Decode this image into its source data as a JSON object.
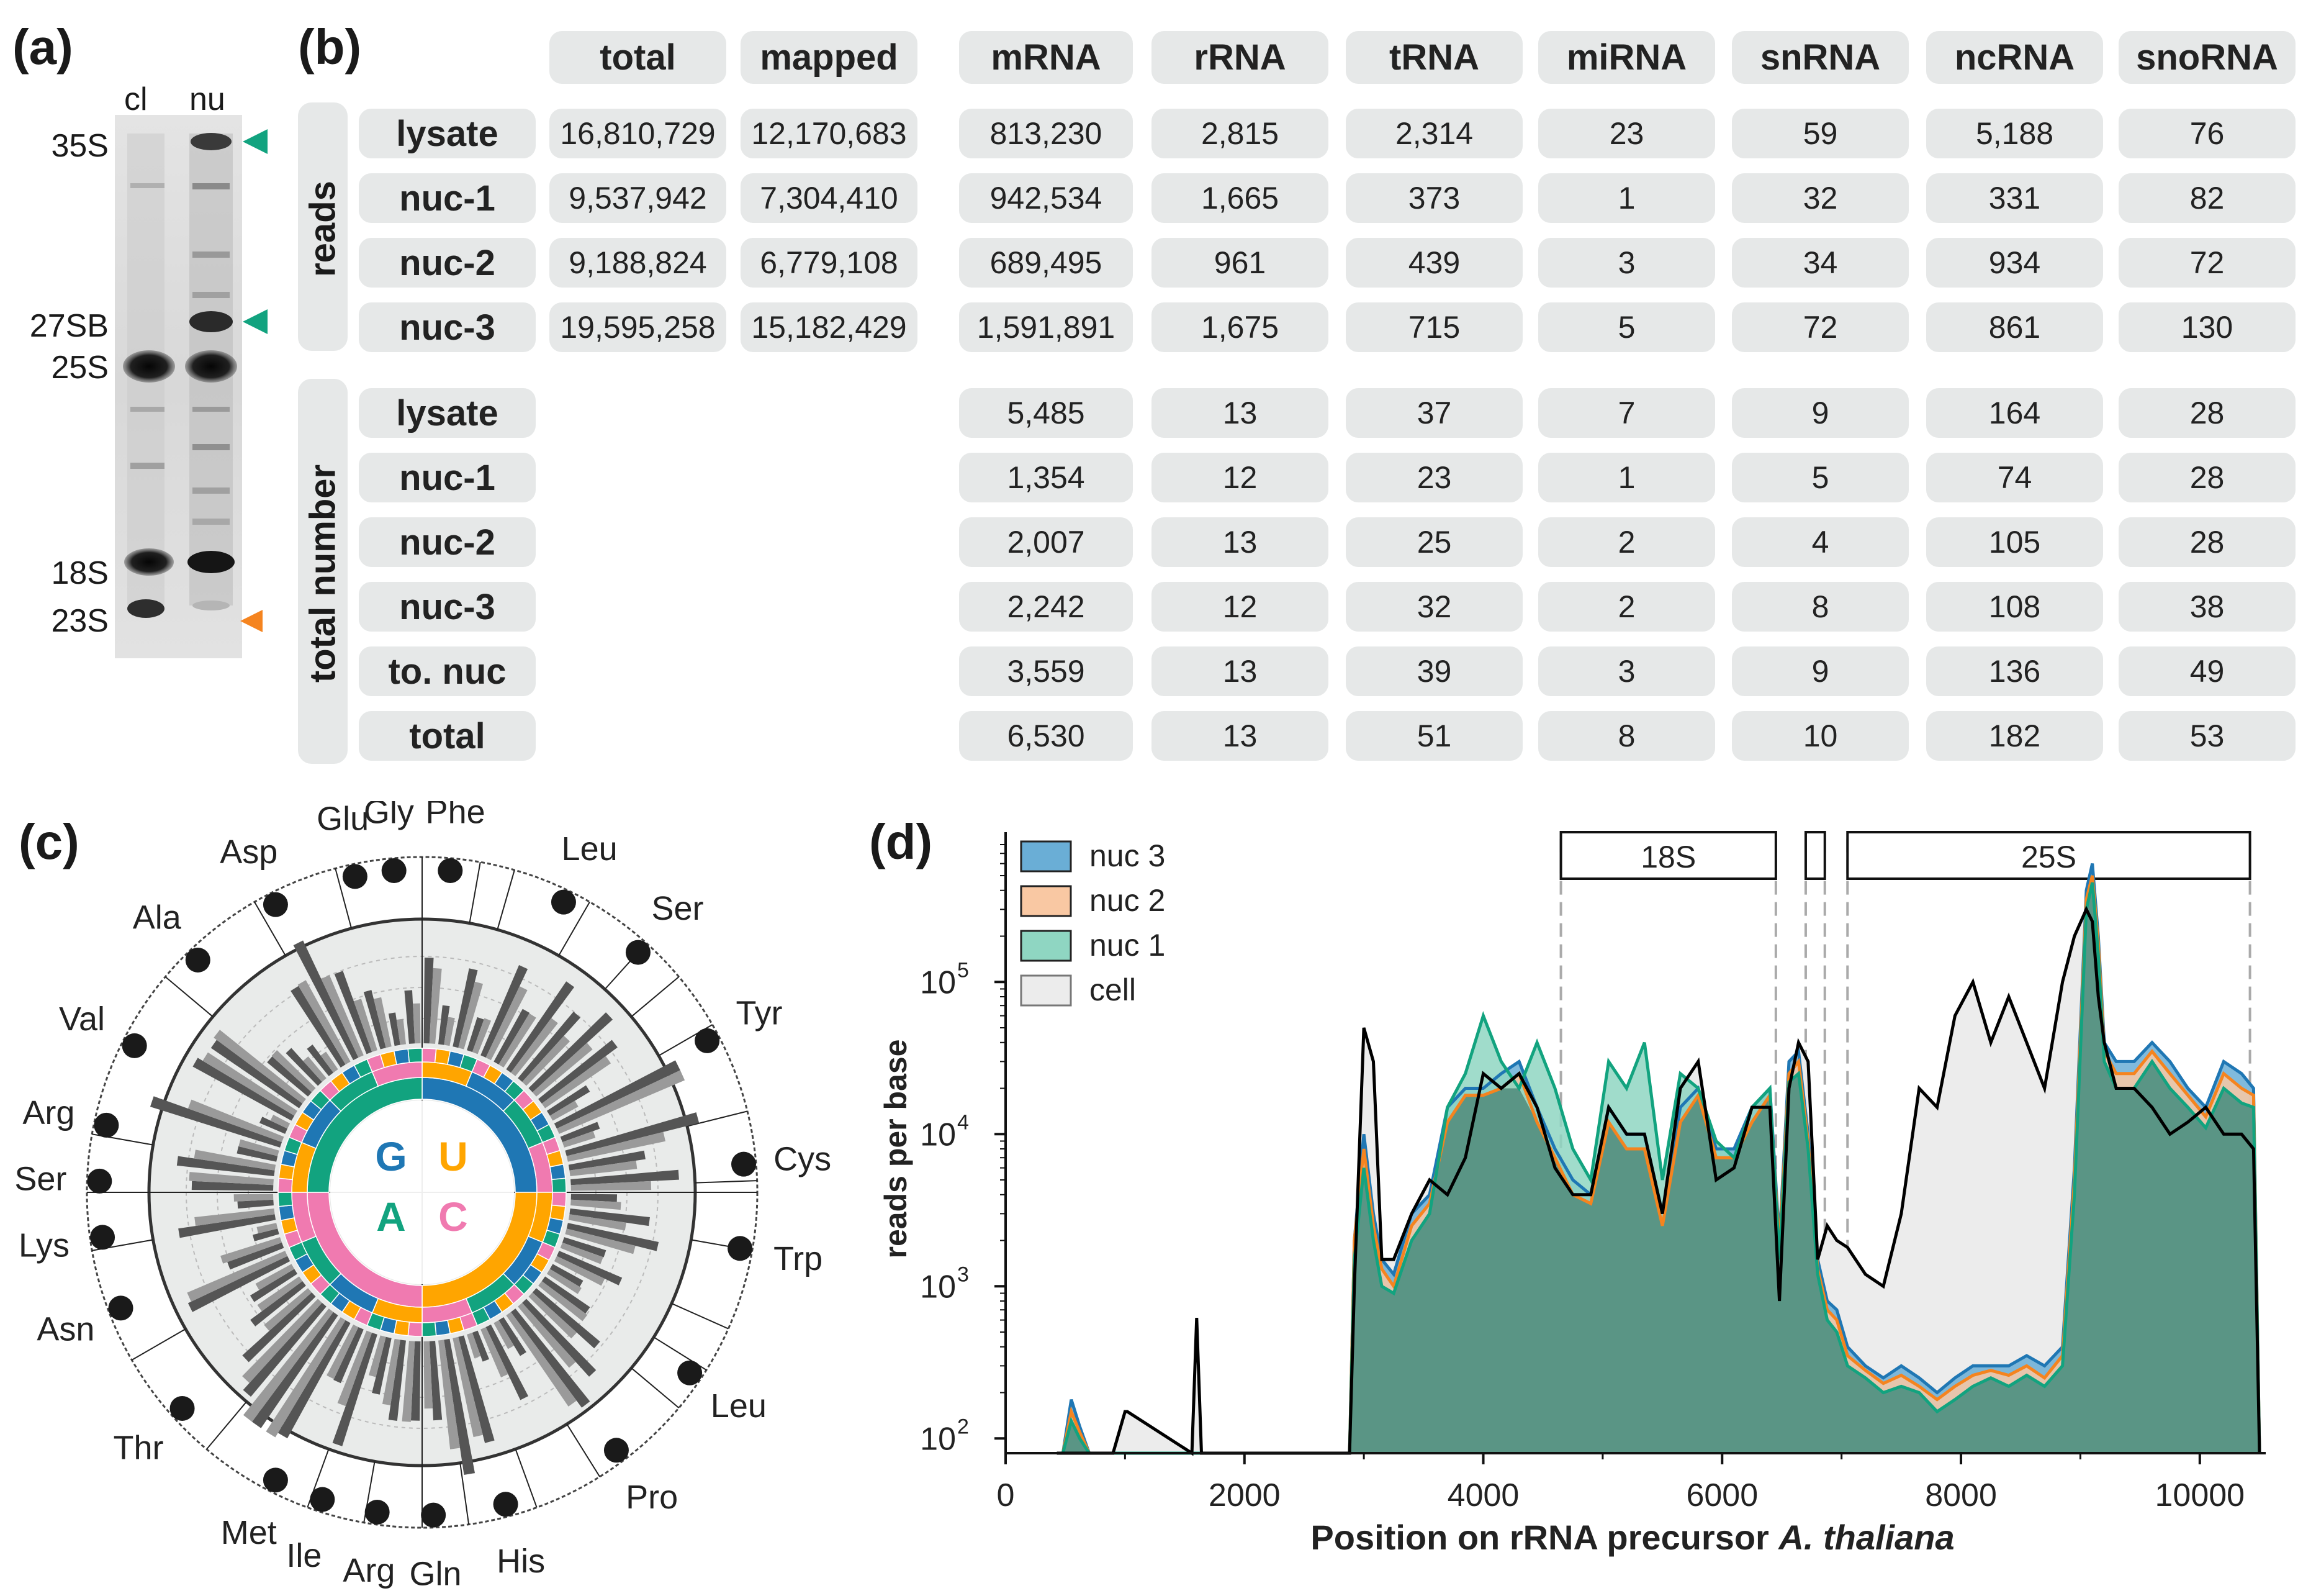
{
  "panels": {
    "a": "(a)",
    "b": "(b)",
    "c": "(c)",
    "d": "(d)"
  },
  "gel": {
    "lanes": [
      "cl",
      "nu"
    ],
    "markers": [
      "35S",
      "27SB",
      "25S",
      "18S",
      "23S"
    ],
    "arrow_colors": {
      "green": "#12a37f",
      "orange": "#f5841f"
    }
  },
  "table": {
    "columns": [
      "total",
      "mapped",
      "mRNA",
      "rRNA",
      "tRNA",
      "miRNA",
      "snRNA",
      "ncRNA",
      "snoRNA"
    ],
    "group_reads": "reads",
    "group_total": "total number",
    "reads_rows": [
      {
        "label": "lysate",
        "values": [
          "16,810,729",
          "12,170,683",
          "813,230",
          "2,815",
          "2,314",
          "23",
          "59",
          "5,188",
          "76"
        ]
      },
      {
        "label": "nuc-1",
        "values": [
          "9,537,942",
          "7,304,410",
          "942,534",
          "1,665",
          "373",
          "1",
          "32",
          "331",
          "82"
        ]
      },
      {
        "label": "nuc-2",
        "values": [
          "9,188,824",
          "6,779,108",
          "689,495",
          "961",
          "439",
          "3",
          "34",
          "934",
          "72"
        ]
      },
      {
        "label": "nuc-3",
        "values": [
          "19,595,258",
          "15,182,429",
          "1,591,891",
          "1,675",
          "715",
          "5",
          "72",
          "861",
          "130"
        ]
      }
    ],
    "total_rows": [
      {
        "label": "lysate",
        "values": [
          "5,485",
          "13",
          "37",
          "7",
          "9",
          "164",
          "28"
        ]
      },
      {
        "label": "nuc-1",
        "values": [
          "1,354",
          "12",
          "23",
          "1",
          "5",
          "74",
          "28"
        ]
      },
      {
        "label": "nuc-2",
        "values": [
          "2,007",
          "13",
          "25",
          "2",
          "4",
          "105",
          "28"
        ]
      },
      {
        "label": "nuc-3",
        "values": [
          "2,242",
          "12",
          "32",
          "2",
          "8",
          "108",
          "38"
        ]
      },
      {
        "label": "to. nuc",
        "values": [
          "3,559",
          "13",
          "39",
          "3",
          "9",
          "136",
          "49"
        ]
      },
      {
        "label": "total",
        "values": [
          "6,530",
          "13",
          "51",
          "8",
          "10",
          "182",
          "53"
        ]
      }
    ]
  },
  "codon_wheel": {
    "center_letters": [
      "G",
      "U",
      "A",
      "C"
    ],
    "letter_colors": {
      "G": "#1f77b4",
      "U": "#ffa500",
      "A": "#12a37f",
      "C": "#f07ab0"
    },
    "amino_acids": [
      "Phe",
      "Leu",
      "Ser",
      "Tyr",
      "Cys",
      "Trp",
      "Leu",
      "Pro",
      "His",
      "Gln",
      "Arg",
      "Ile",
      "Met",
      "Thr",
      "Asn",
      "Lys",
      "Ser",
      "Arg",
      "Val",
      "Ala",
      "Asp",
      "Glu",
      "Gly"
    ]
  },
  "chart_data": {
    "type": "area",
    "title": "",
    "xlabel": "Position on rRNA precursor",
    "xlabel_italic": "A. thaliana",
    "ylabel": "reads per base",
    "xlim": [
      0,
      10500
    ],
    "ylim": [
      80,
      800000
    ],
    "yscale": "log",
    "x_ticks": [
      "0",
      "2000",
      "4000",
      "6000",
      "8000",
      "10000"
    ],
    "y_ticks": [
      "10",
      "10",
      "10",
      "10"
    ],
    "y_tick_exponents": [
      "2",
      "3",
      "4",
      "5"
    ],
    "regions": [
      {
        "label": "18S",
        "start": 4650,
        "end": 6450
      },
      {
        "label": "",
        "start": 6700,
        "end": 6860
      },
      {
        "label": "25S",
        "start": 7050,
        "end": 10420
      }
    ],
    "series": [
      {
        "name": "nuc 3",
        "color": "#1f77b4",
        "fill": "#6aaed6"
      },
      {
        "name": "nuc 2",
        "color": "#f5841f",
        "fill": "#f9c8a3"
      },
      {
        "name": "nuc 1",
        "color": "#12a37f",
        "fill": "#8fd6c2"
      },
      {
        "name": "cell",
        "color": "#000000",
        "fill": "#ececec"
      }
    ],
    "profile_x": [
      430,
      480,
      550,
      620,
      700,
      760,
      900,
      1000,
      1020,
      1560,
      1600,
      1640,
      2880,
      2920,
      3000,
      3080,
      3150,
      3250,
      3400,
      3550,
      3700,
      3850,
      4000,
      4150,
      4300,
      4450,
      4600,
      4750,
      4900,
      5050,
      5200,
      5350,
      5500,
      5650,
      5800,
      5950,
      6100,
      6250,
      6400,
      6480,
      6560,
      6640,
      6720,
      6800,
      6880,
      6960,
      7050,
      7200,
      7350,
      7500,
      7650,
      7800,
      7950,
      8100,
      8250,
      8400,
      8550,
      8700,
      8850,
      8950,
      9050,
      9100,
      9150,
      9200,
      9300,
      9450,
      9600,
      9750,
      9900,
      10050,
      10200,
      10350,
      10450,
      10500
    ],
    "cell_values": [
      80,
      80,
      80,
      80,
      80,
      80,
      80,
      150,
      150,
      80,
      620,
      80,
      80,
      1000,
      50000,
      30000,
      1500,
      1500,
      3000,
      5000,
      4000,
      7000,
      25000,
      20000,
      25000,
      15000,
      6000,
      4000,
      4000,
      15000,
      10000,
      10000,
      3000,
      20000,
      30000,
      5000,
      6000,
      15000,
      15000,
      800,
      20000,
      40000,
      30000,
      1500,
      2500,
      2000,
      1800,
      1200,
      1000,
      3000,
      20000,
      15000,
      60000,
      100000,
      40000,
      80000,
      40000,
      20000,
      100000,
      200000,
      300000,
      250000,
      80000,
      40000,
      20000,
      20000,
      15000,
      10000,
      12000,
      15000,
      10000,
      10000,
      8000,
      80
    ],
    "nuc3_values": [
      80,
      80,
      180,
      120,
      80,
      80,
      80,
      80,
      80,
      80,
      80,
      80,
      80,
      2000,
      10000,
      3000,
      1500,
      1200,
      3000,
      4000,
      15000,
      20000,
      20000,
      25000,
      30000,
      15000,
      8000,
      5000,
      4000,
      15000,
      10000,
      10000,
      3000,
      15000,
      20000,
      8000,
      8000,
      15000,
      20000,
      2000,
      30000,
      35000,
      10000,
      1500,
      800,
      700,
      400,
      300,
      250,
      300,
      250,
      200,
      250,
      300,
      300,
      300,
      350,
      300,
      400,
      6000,
      400000,
      600000,
      200000,
      40000,
      30000,
      30000,
      40000,
      30000,
      20000,
      15000,
      30000,
      25000,
      20000,
      80
    ],
    "nuc2_values": [
      80,
      80,
      150,
      110,
      80,
      80,
      80,
      80,
      80,
      80,
      80,
      80,
      80,
      2000,
      8000,
      2500,
      1300,
      1000,
      2500,
      3500,
      12000,
      18000,
      18000,
      20000,
      25000,
      12000,
      7000,
      4000,
      3500,
      12000,
      8000,
      8000,
      2500,
      12000,
      18000,
      7000,
      7000,
      12000,
      18000,
      1800,
      25000,
      30000,
      9000,
      1300,
      700,
      600,
      350,
      280,
      230,
      260,
      220,
      180,
      220,
      260,
      280,
      260,
      300,
      250,
      350,
      5000,
      350000,
      500000,
      180000,
      35000,
      25000,
      25000,
      35000,
      25000,
      18000,
      13000,
      25000,
      20000,
      18000,
      80
    ],
    "nuc1_values": [
      80,
      80,
      130,
      100,
      80,
      80,
      80,
      80,
      80,
      80,
      80,
      80,
      80,
      1500,
      6000,
      2000,
      1000,
      900,
      2000,
      3000,
      15000,
      25000,
      60000,
      30000,
      20000,
      40000,
      20000,
      8000,
      5000,
      30000,
      20000,
      40000,
      5000,
      25000,
      20000,
      9000,
      7000,
      15000,
      20000,
      1500,
      22000,
      25000,
      8000,
      1200,
      600,
      500,
      300,
      250,
      200,
      220,
      200,
      150,
      180,
      220,
      250,
      220,
      260,
      220,
      300,
      4000,
      300000,
      450000,
      150000,
      30000,
      20000,
      20000,
      30000,
      20000,
      15000,
      11000,
      20000,
      16000,
      15000,
      80
    ]
  }
}
